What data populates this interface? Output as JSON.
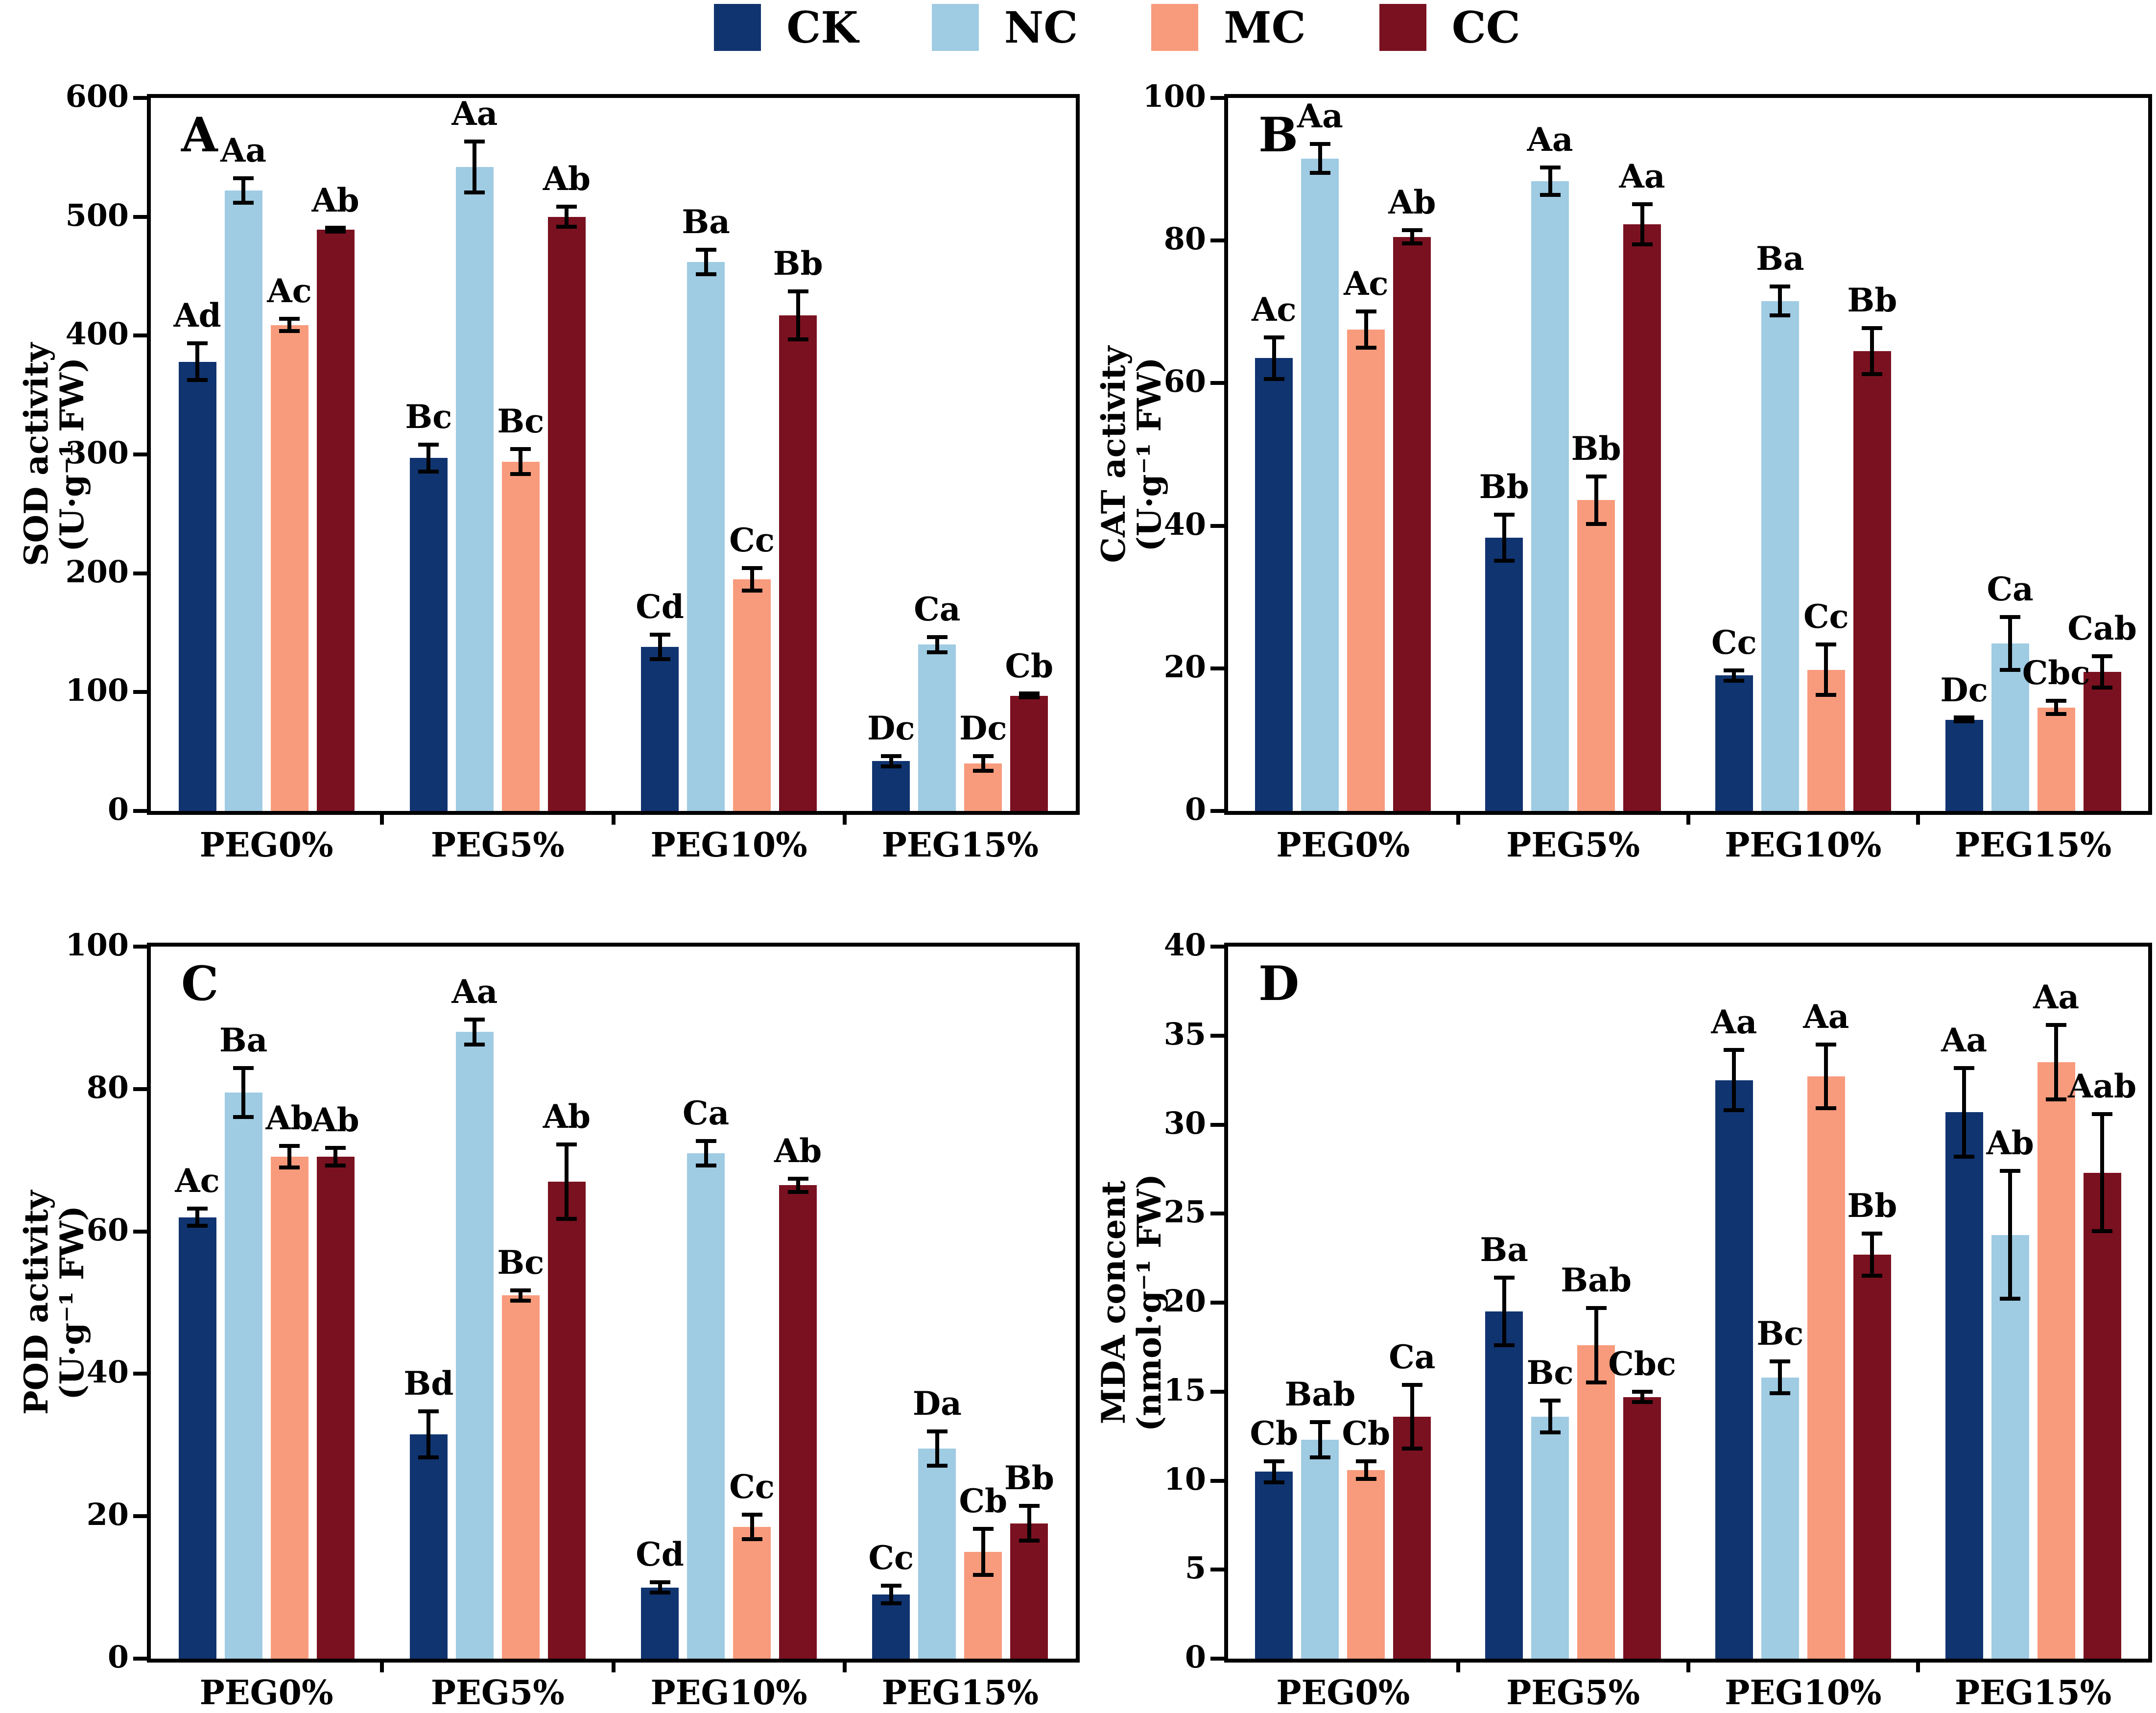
{
  "legend": {
    "items": [
      {
        "label": "CK",
        "color": "#103470"
      },
      {
        "label": "NC",
        "color": "#9FCBE3"
      },
      {
        "label": "MC",
        "color": "#F89B7C"
      },
      {
        "label": "CC",
        "color": "#7A1120"
      }
    ]
  },
  "chart_data": [
    {
      "type": "bar",
      "panel": "A",
      "ylabel_lines": [
        "SOD activity",
        "(U·g⁻¹ FW)"
      ],
      "ylim": [
        0,
        600
      ],
      "yticks": [
        0,
        100,
        200,
        300,
        400,
        500,
        600
      ],
      "grid": false,
      "legend_position": "top-center",
      "categories": [
        "PEG0%",
        "PEG5%",
        "PEG10%",
        "PEG15%"
      ],
      "series": [
        {
          "name": "CK",
          "values": [
            378,
            297,
            138,
            42
          ],
          "errors": [
            17,
            13,
            12,
            6
          ],
          "sig": [
            "Ad",
            "Bc",
            "Cd",
            "Dc"
          ]
        },
        {
          "name": "NC",
          "values": [
            522,
            542,
            462,
            140
          ],
          "errors": [
            12,
            23,
            12,
            8
          ],
          "sig": [
            "Aa",
            "Aa",
            "Ba",
            "Ca"
          ]
        },
        {
          "name": "MC",
          "values": [
            409,
            294,
            195,
            40
          ],
          "errors": [
            7,
            12,
            11,
            8
          ],
          "sig": [
            "Ac",
            "Bc",
            "Cc",
            "Dc"
          ]
        },
        {
          "name": "CC",
          "values": [
            489,
            500,
            417,
            97
          ],
          "errors": [
            3,
            10,
            22,
            3
          ],
          "sig": [
            "Ab",
            "Ab",
            "Bb",
            "Cb"
          ]
        }
      ]
    },
    {
      "type": "bar",
      "panel": "B",
      "ylabel_lines": [
        "CAT activity",
        "(U·g⁻¹ FW)"
      ],
      "ylim": [
        0,
        100
      ],
      "yticks": [
        0,
        20,
        40,
        60,
        80,
        100
      ],
      "grid": false,
      "legend_position": "top-center",
      "categories": [
        "PEG0%",
        "PEG5%",
        "PEG10%",
        "PEG15%"
      ],
      "series": [
        {
          "name": "CK",
          "values": [
            63.5,
            38.3,
            19.0,
            12.8
          ],
          "errors": [
            3.2,
            3.5,
            1.0,
            0.5
          ],
          "sig": [
            "Ac",
            "Bb",
            "Cc",
            "Dc"
          ]
        },
        {
          "name": "NC",
          "values": [
            91.5,
            88.3,
            71.5,
            23.5
          ],
          "errors": [
            2.3,
            2.2,
            2.3,
            4.0
          ],
          "sig": [
            "Aa",
            "Aa",
            "Ba",
            "Ca"
          ]
        },
        {
          "name": "MC",
          "values": [
            67.5,
            43.6,
            19.8,
            14.5
          ],
          "errors": [
            2.8,
            3.6,
            3.8,
            1.2
          ],
          "sig": [
            "Ac",
            "Bb",
            "Cc",
            "Cbc"
          ]
        },
        {
          "name": "CC",
          "values": [
            80.5,
            82.3,
            64.5,
            19.5
          ],
          "errors": [
            1.2,
            3.1,
            3.5,
            2.5
          ],
          "sig": [
            "Ab",
            "Aa",
            "Bb",
            "Cab"
          ]
        }
      ]
    },
    {
      "type": "bar",
      "panel": "C",
      "ylabel_lines": [
        "POD activity",
        "(U·g⁻¹ FW)"
      ],
      "ylim": [
        0,
        100
      ],
      "yticks": [
        0,
        20,
        40,
        60,
        80,
        100
      ],
      "grid": false,
      "legend_position": "top-center",
      "categories": [
        "PEG0%",
        "PEG5%",
        "PEG10%",
        "PEG15%"
      ],
      "series": [
        {
          "name": "CK",
          "values": [
            62.0,
            31.5,
            10.0,
            9.0
          ],
          "errors": [
            1.5,
            3.5,
            1.0,
            1.5
          ],
          "sig": [
            "Ac",
            "Bd",
            "Cd",
            "Cc"
          ]
        },
        {
          "name": "NC",
          "values": [
            79.5,
            88.0,
            71.0,
            29.5
          ],
          "errors": [
            3.7,
            2.0,
            2.0,
            2.7
          ],
          "sig": [
            "Ba",
            "Aa",
            "Ca",
            "Da"
          ]
        },
        {
          "name": "MC",
          "values": [
            70.5,
            51.0,
            18.5,
            15.0
          ],
          "errors": [
            1.8,
            1.0,
            2.0,
            3.5
          ],
          "sig": [
            "Ab",
            "Bc",
            "Cc",
            "Cb"
          ]
        },
        {
          "name": "CC",
          "values": [
            70.5,
            67.0,
            66.5,
            19.0
          ],
          "errors": [
            1.5,
            5.5,
            1.2,
            2.7
          ],
          "sig": [
            "Ab",
            "Ab",
            "Ab",
            "Bb"
          ]
        }
      ]
    },
    {
      "type": "bar",
      "panel": "D",
      "ylabel_lines": [
        "MDA concent",
        "(nmol·g⁻¹ FW)"
      ],
      "ylim": [
        0,
        40
      ],
      "yticks": [
        0,
        5,
        10,
        15,
        20,
        25,
        30,
        35,
        40
      ],
      "grid": false,
      "legend_position": "top-center",
      "categories": [
        "PEG0%",
        "PEG5%",
        "PEG10%",
        "PEG15%"
      ],
      "series": [
        {
          "name": "CK",
          "values": [
            10.5,
            19.5,
            32.5,
            30.7
          ],
          "errors": [
            0.7,
            2.0,
            1.8,
            2.6
          ],
          "sig": [
            "Cb",
            "Ba",
            "Aa",
            "Aa"
          ]
        },
        {
          "name": "NC",
          "values": [
            12.3,
            13.6,
            15.8,
            23.8
          ],
          "errors": [
            1.1,
            1.0,
            1.0,
            3.7
          ],
          "sig": [
            "Bab",
            "Bc",
            "Bc",
            "Ab"
          ]
        },
        {
          "name": "MC",
          "values": [
            10.6,
            17.6,
            32.7,
            33.5
          ],
          "errors": [
            0.6,
            2.2,
            1.9,
            2.2
          ],
          "sig": [
            "Cb",
            "Bab",
            "Aa",
            "Aa"
          ]
        },
        {
          "name": "CC",
          "values": [
            13.6,
            14.7,
            22.7,
            27.3
          ],
          "errors": [
            1.9,
            0.4,
            1.3,
            3.4
          ],
          "sig": [
            "Ca",
            "Cbc",
            "Bb",
            "Aab"
          ]
        }
      ]
    }
  ]
}
